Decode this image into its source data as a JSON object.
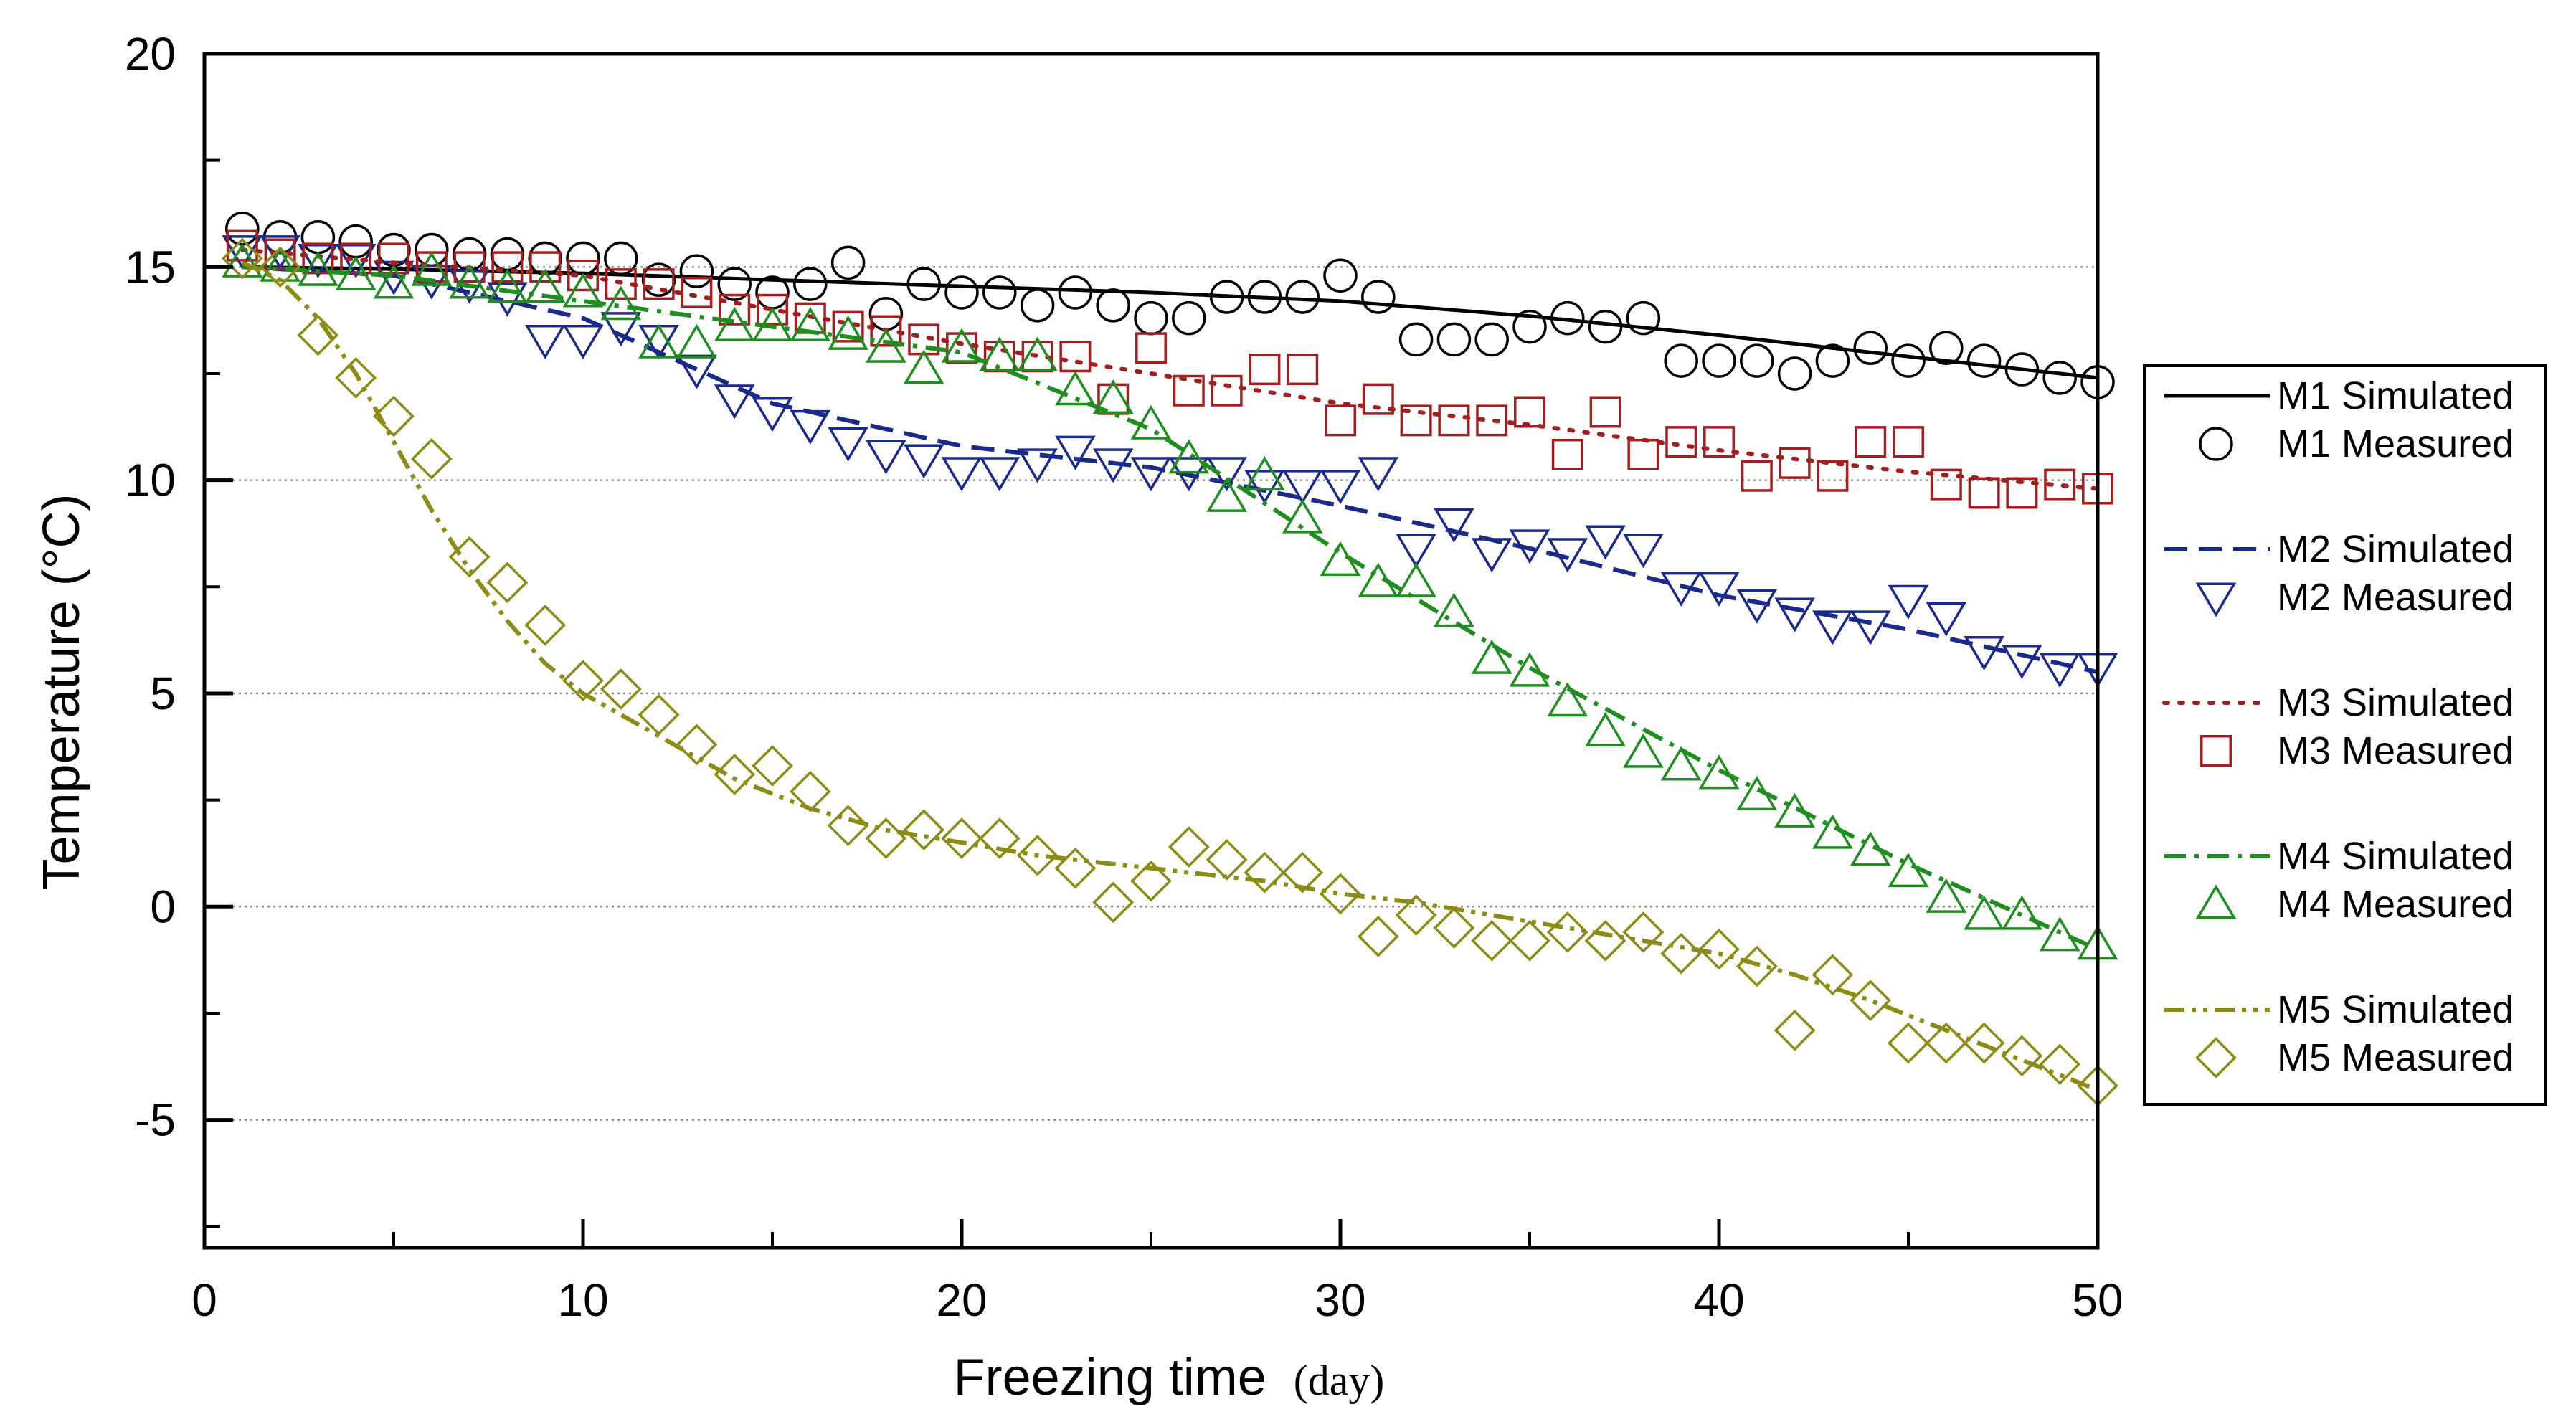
{
  "chart_data": {
    "type": "line",
    "xlabel": "Freezing time",
    "xlabel_unit": "(day)",
    "ylabel": "Temperature (°C)",
    "xlim": [
      0,
      50
    ],
    "ylim": [
      -8,
      20
    ],
    "x_ticks": [
      0,
      10,
      20,
      30,
      40,
      50
    ],
    "x_tick_labels": [
      "0",
      "10",
      "20",
      "30",
      "40",
      "50"
    ],
    "y_ticks": [
      -5,
      0,
      5,
      10,
      15,
      20
    ],
    "y_tick_labels": [
      "-5",
      "0",
      "5",
      "10",
      "15",
      "20"
    ],
    "gridlines_y": [
      -5,
      0,
      5,
      10,
      15
    ],
    "legend_position": "right",
    "legend": [
      {
        "label": "M1 Simulated",
        "kind": "line",
        "series": "M1",
        "color": "#000000",
        "dash": "solid"
      },
      {
        "label": "M1 Measured",
        "kind": "marker",
        "series": "M1",
        "color": "#000000",
        "marker": "circle"
      },
      {
        "label": "M2 Simulated",
        "kind": "line",
        "series": "M2",
        "color": "#1a2a8c",
        "dash": "dash"
      },
      {
        "label": "M2 Measured",
        "kind": "marker",
        "series": "M2",
        "color": "#1a2a8c",
        "marker": "triangle-down"
      },
      {
        "label": "M3 Simulated",
        "kind": "line",
        "series": "M3",
        "color": "#a31f1f",
        "dash": "dot"
      },
      {
        "label": "M3 Measured",
        "kind": "marker",
        "series": "M3",
        "color": "#a31f1f",
        "marker": "square"
      },
      {
        "label": "M4 Simulated",
        "kind": "line",
        "series": "M4",
        "color": "#1e8f1e",
        "dash": "dashdot"
      },
      {
        "label": "M4 Measured",
        "kind": "marker",
        "series": "M4",
        "color": "#1e8f1e",
        "marker": "triangle-up"
      },
      {
        "label": "M5 Simulated",
        "kind": "line",
        "series": "M5",
        "color": "#8c8c14",
        "dash": "dashdotdot"
      },
      {
        "label": "M5 Measured",
        "kind": "marker",
        "series": "M5",
        "color": "#8c8c14",
        "marker": "diamond"
      }
    ],
    "series": [
      {
        "name": "M1",
        "simulated": {
          "x": [
            1,
            5,
            10,
            15,
            20,
            25,
            30,
            35,
            40,
            45,
            50
          ],
          "y": [
            15.0,
            14.95,
            14.85,
            14.7,
            14.55,
            14.4,
            14.2,
            13.85,
            13.4,
            12.9,
            12.4
          ]
        },
        "measured": {
          "x": [
            1,
            2,
            3,
            4,
            5,
            6,
            7,
            8,
            9,
            10,
            11,
            12,
            13,
            14,
            15,
            16,
            17,
            18,
            19,
            20,
            21,
            22,
            23,
            24,
            25,
            26,
            27,
            28,
            29,
            30,
            31,
            32,
            33,
            34,
            35,
            36,
            37,
            38,
            39,
            40,
            41,
            42,
            43,
            44,
            45,
            46,
            47,
            48,
            49,
            50
          ],
          "y": [
            15.9,
            15.7,
            15.7,
            15.6,
            15.4,
            15.4,
            15.3,
            15.3,
            15.2,
            15.2,
            15.2,
            14.7,
            14.9,
            14.6,
            14.4,
            14.6,
            15.1,
            13.9,
            14.6,
            14.4,
            14.4,
            14.1,
            14.4,
            14.1,
            13.8,
            13.8,
            14.3,
            14.3,
            14.3,
            14.8,
            14.3,
            13.3,
            13.3,
            13.3,
            13.6,
            13.8,
            13.6,
            13.8,
            12.8,
            12.8,
            12.8,
            12.5,
            12.8,
            13.1,
            12.8,
            13.1,
            12.8,
            12.6,
            12.4,
            12.3
          ]
        }
      },
      {
        "name": "M2",
        "simulated": {
          "x": [
            1,
            5,
            10,
            15,
            20,
            25,
            30,
            35,
            40,
            45,
            50
          ],
          "y": [
            15.0,
            14.8,
            13.8,
            11.8,
            10.8,
            10.3,
            9.4,
            8.4,
            7.3,
            6.5,
            5.5
          ]
        },
        "measured": {
          "x": [
            1,
            2,
            3,
            4,
            5,
            6,
            7,
            8,
            9,
            10,
            11,
            12,
            13,
            14,
            15,
            16,
            17,
            18,
            19,
            20,
            21,
            22,
            23,
            24,
            25,
            26,
            27,
            28,
            29,
            30,
            31,
            32,
            33,
            34,
            35,
            36,
            37,
            38,
            39,
            40,
            41,
            42,
            43,
            44,
            45,
            46,
            47,
            48,
            49,
            50
          ],
          "y": [
            15.4,
            15.4,
            15.2,
            15.2,
            14.8,
            14.7,
            14.6,
            14.3,
            13.3,
            13.3,
            13.6,
            13.3,
            12.6,
            11.9,
            11.6,
            11.3,
            10.9,
            10.6,
            10.5,
            10.2,
            10.2,
            10.4,
            10.7,
            10.4,
            10.2,
            10.2,
            10.2,
            9.9,
            9.9,
            9.9,
            10.2,
            8.4,
            9.0,
            8.3,
            8.5,
            8.3,
            8.6,
            8.4,
            7.5,
            7.5,
            7.1,
            6.9,
            6.6,
            6.6,
            7.2,
            6.8,
            6.0,
            5.8,
            5.6,
            5.6
          ]
        }
      },
      {
        "name": "M3",
        "simulated": {
          "x": [
            1,
            5,
            10,
            15,
            20,
            25,
            30,
            35,
            40,
            45,
            50
          ],
          "y": [
            15.4,
            15.1,
            14.8,
            14.0,
            13.2,
            12.5,
            11.8,
            11.3,
            10.7,
            10.2,
            9.8
          ]
        },
        "measured": {
          "x": [
            1,
            2,
            3,
            4,
            5,
            6,
            7,
            8,
            9,
            10,
            11,
            12,
            13,
            14,
            15,
            16,
            17,
            18,
            19,
            20,
            21,
            22,
            23,
            24,
            25,
            26,
            27,
            28,
            29,
            30,
            31,
            32,
            33,
            34,
            35,
            36,
            37,
            38,
            39,
            40,
            41,
            42,
            43,
            44,
            45,
            46,
            47,
            48,
            49,
            50
          ],
          "y": [
            15.5,
            15.3,
            15.2,
            15.2,
            15.2,
            15.0,
            15.0,
            15.0,
            15.0,
            14.8,
            14.6,
            14.6,
            14.4,
            14.0,
            14.0,
            13.8,
            13.6,
            13.5,
            13.3,
            13.1,
            12.9,
            12.9,
            12.9,
            11.9,
            13.1,
            12.1,
            12.1,
            12.6,
            12.6,
            11.4,
            11.9,
            11.4,
            11.4,
            11.4,
            11.6,
            10.6,
            11.6,
            10.6,
            10.9,
            10.9,
            10.1,
            10.4,
            10.1,
            10.9,
            10.9,
            9.9,
            9.7,
            9.7,
            9.9,
            9.8
          ]
        }
      },
      {
        "name": "M4",
        "simulated": {
          "x": [
            1,
            5,
            10,
            15,
            20,
            25,
            30,
            35,
            40,
            45,
            50
          ],
          "y": [
            15.0,
            14.8,
            14.2,
            13.6,
            13.0,
            11.2,
            8.3,
            5.6,
            3.2,
            1.0,
            -1.0
          ]
        },
        "measured": {
          "x": [
            1,
            2,
            3,
            4,
            5,
            6,
            7,
            8,
            9,
            10,
            11,
            12,
            13,
            14,
            15,
            16,
            17,
            18,
            19,
            20,
            21,
            22,
            23,
            24,
            25,
            26,
            27,
            28,
            29,
            30,
            31,
            32,
            33,
            34,
            35,
            36,
            37,
            38,
            39,
            40,
            41,
            42,
            43,
            44,
            45,
            46,
            47,
            48,
            49,
            50
          ],
          "y": [
            15.1,
            15.0,
            14.9,
            14.8,
            14.6,
            14.9,
            14.6,
            14.5,
            14.5,
            14.4,
            14.1,
            13.2,
            13.2,
            13.6,
            13.6,
            13.6,
            13.4,
            13.1,
            12.6,
            13.1,
            12.9,
            12.9,
            12.1,
            11.9,
            11.3,
            10.5,
            9.6,
            10.1,
            9.1,
            8.1,
            7.6,
            7.6,
            6.9,
            5.8,
            5.5,
            4.8,
            4.1,
            3.6,
            3.3,
            3.1,
            2.6,
            2.2,
            1.7,
            1.3,
            0.8,
            0.2,
            -0.2,
            -0.2,
            -0.7,
            -0.9
          ]
        }
      },
      {
        "name": "M5",
        "simulated": {
          "x": [
            1,
            2,
            3,
            4,
            5,
            6,
            7,
            8,
            9,
            10,
            12,
            14,
            16,
            18,
            20,
            22,
            24,
            26,
            28,
            30,
            32,
            34,
            36,
            38,
            40,
            42,
            44,
            46,
            48,
            50
          ],
          "y": [
            15.1,
            14.7,
            13.8,
            12.5,
            10.9,
            9.3,
            7.9,
            6.7,
            5.7,
            5.0,
            4.0,
            3.0,
            2.3,
            1.8,
            1.5,
            1.2,
            1.0,
            0.8,
            0.6,
            0.3,
            0.1,
            -0.2,
            -0.5,
            -0.8,
            -1.1,
            -1.6,
            -2.2,
            -2.9,
            -3.6,
            -4.3
          ]
        },
        "measured": {
          "x": [
            1,
            2,
            3,
            4,
            5,
            6,
            7,
            8,
            9,
            10,
            11,
            12,
            13,
            14,
            15,
            16,
            17,
            18,
            19,
            20,
            21,
            22,
            23,
            24,
            25,
            26,
            27,
            28,
            29,
            30,
            31,
            32,
            33,
            34,
            35,
            36,
            37,
            38,
            39,
            40,
            41,
            42,
            43,
            44,
            45,
            46,
            47,
            48,
            49,
            50
          ],
          "y": [
            15.2,
            15.0,
            13.4,
            12.4,
            11.5,
            10.5,
            8.2,
            7.6,
            6.6,
            5.3,
            5.1,
            4.5,
            3.8,
            3.1,
            3.3,
            2.7,
            1.9,
            1.6,
            1.8,
            1.6,
            1.6,
            1.2,
            0.9,
            0.1,
            0.6,
            1.4,
            1.1,
            0.8,
            0.8,
            0.3,
            -0.7,
            -0.2,
            -0.5,
            -0.8,
            -0.8,
            -0.6,
            -0.8,
            -0.6,
            -1.1,
            -1.0,
            -1.4,
            -2.9,
            -1.6,
            -2.2,
            -3.2,
            -3.2,
            -3.2,
            -3.5,
            -3.7,
            -4.2
          ]
        }
      }
    ]
  }
}
